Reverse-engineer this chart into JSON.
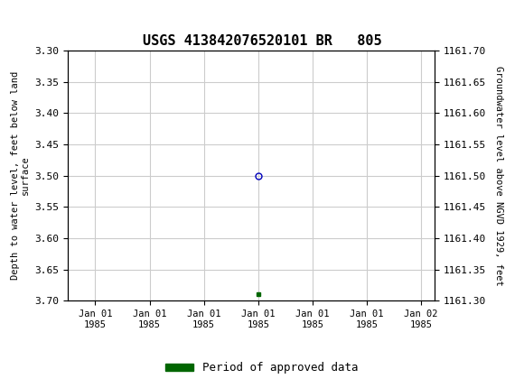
{
  "title": "USGS 413842076520101 BR   805",
  "left_ylabel": "Depth to water level, feet below land\nsurface",
  "right_ylabel": "Groundwater level above NGVD 1929, feet",
  "ylim_left": [
    3.3,
    3.7
  ],
  "ylim_right": [
    1161.3,
    1161.7
  ],
  "left_yticks": [
    3.3,
    3.35,
    3.4,
    3.45,
    3.5,
    3.55,
    3.6,
    3.65,
    3.7
  ],
  "right_yticks": [
    1161.7,
    1161.65,
    1161.6,
    1161.55,
    1161.5,
    1161.45,
    1161.4,
    1161.35,
    1161.3
  ],
  "data_circle_value": 3.5,
  "data_circle_color": "#0000bb",
  "data_square_value": 3.69,
  "data_square_color": "#006600",
  "n_xticks": 7,
  "xtick_labels": [
    "Jan 01\n1985",
    "Jan 01\n1985",
    "Jan 01\n1985",
    "Jan 01\n1985",
    "Jan 01\n1985",
    "Jan 01\n1985",
    "Jan 02\n1985"
  ],
  "grid_color": "#cccccc",
  "background_color": "#ffffff",
  "header_color": "#006633",
  "legend_label": "Period of approved data",
  "legend_color": "#006600"
}
